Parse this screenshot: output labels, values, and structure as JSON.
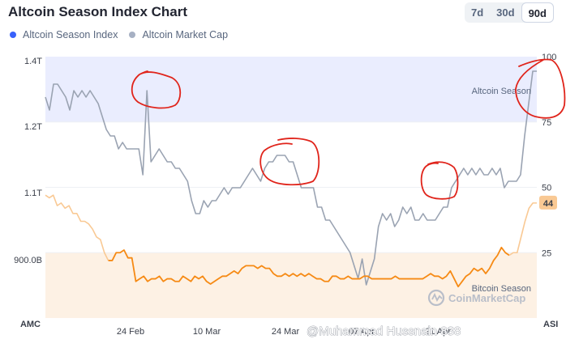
{
  "header": {
    "title": "Altcoin Season Index Chart",
    "range_tabs": [
      {
        "label": "7d",
        "active": false
      },
      {
        "label": "30d",
        "active": false
      },
      {
        "label": "90d",
        "active": true
      }
    ]
  },
  "legend": [
    {
      "label": "Altcoin Season Index",
      "color": "#3861fb"
    },
    {
      "label": "Altcoin Market Cap",
      "color": "#a6b0c3"
    }
  ],
  "watermark": {
    "brand": "CoinMarketCap",
    "user": "@Muhammad Hussnain 838"
  },
  "colors": {
    "market_cap_line": "#9aa3b2",
    "index_line": "#f68a14",
    "index_line_faded": "#f9c994",
    "altcoin_zone": "#eaedfe",
    "bitcoin_zone": "#fdf1e4",
    "annotation": "#e0241b"
  },
  "chart_data": {
    "type": "line",
    "x_ticks": [
      "24 Feb",
      "10 Mar",
      "24 Mar",
      "07 Apr",
      "21 Apr"
    ],
    "left_axis": {
      "ticks": [
        "1.4T",
        "1.2T",
        "1.1T",
        "900.0B"
      ],
      "extra_label": "AMC"
    },
    "right_axis": {
      "ticks": [
        "100",
        "75",
        "50",
        "25"
      ],
      "extra_label": "ASI",
      "ylim": [
        0,
        100
      ]
    },
    "zones": [
      {
        "label": "Altcoin Season",
        "from": 75,
        "to": 100
      },
      {
        "label": "Bitcoin Season",
        "from": 0,
        "to": 25
      }
    ],
    "current_index": "44",
    "series": [
      {
        "name": "Altcoin Market Cap",
        "axis": "left",
        "values": [
          1.24,
          1.22,
          1.26,
          1.26,
          1.25,
          1.24,
          1.22,
          1.25,
          1.24,
          1.25,
          1.24,
          1.25,
          1.24,
          1.23,
          1.21,
          1.19,
          1.18,
          1.18,
          1.16,
          1.17,
          1.16,
          1.16,
          1.16,
          1.16,
          1.12,
          1.25,
          1.14,
          1.15,
          1.16,
          1.15,
          1.14,
          1.14,
          1.13,
          1.13,
          1.12,
          1.11,
          1.08,
          1.06,
          1.06,
          1.08,
          1.07,
          1.08,
          1.08,
          1.09,
          1.1,
          1.09,
          1.1,
          1.1,
          1.1,
          1.11,
          1.12,
          1.13,
          1.12,
          1.11,
          1.13,
          1.14,
          1.14,
          1.15,
          1.15,
          1.15,
          1.14,
          1.14,
          1.12,
          1.1,
          1.1,
          1.1,
          1.1,
          1.07,
          1.07,
          1.05,
          1.05,
          1.04,
          1.03,
          1.02,
          1.01,
          1.0,
          0.98,
          0.96,
          0.99,
          0.95,
          0.97,
          0.99,
          1.04,
          1.06,
          1.05,
          1.06,
          1.04,
          1.05,
          1.07,
          1.06,
          1.07,
          1.05,
          1.05,
          1.06,
          1.05,
          1.05,
          1.05,
          1.06,
          1.07,
          1.07,
          1.1,
          1.11,
          1.12,
          1.13,
          1.12,
          1.13,
          1.12,
          1.13,
          1.12,
          1.12,
          1.13,
          1.12,
          1.13,
          1.1,
          1.11,
          1.11,
          1.11,
          1.12,
          1.18,
          1.23,
          1.28,
          1.28
        ]
      },
      {
        "name": "Altcoin Season Index",
        "axis": "right",
        "values": [
          47,
          46,
          47,
          43,
          44,
          42,
          43,
          40,
          40,
          37,
          37,
          36,
          34,
          31,
          30,
          25,
          22,
          22,
          25,
          25,
          26,
          23,
          23,
          14,
          15,
          16,
          14,
          15,
          15,
          16,
          14,
          15,
          15,
          14,
          14,
          16,
          15,
          14,
          16,
          15,
          16,
          14,
          13,
          14,
          15,
          16,
          16,
          17,
          18,
          17,
          19,
          20,
          20,
          20,
          19,
          20,
          19,
          19,
          17,
          16,
          16,
          17,
          16,
          17,
          16,
          17,
          16,
          17,
          16,
          15,
          15,
          14,
          14,
          16,
          16,
          15,
          15,
          16,
          15,
          15,
          15,
          16,
          16,
          15,
          15,
          15,
          15,
          15,
          15,
          16,
          15,
          15,
          15,
          15,
          15,
          15,
          15,
          16,
          17,
          16,
          16,
          15,
          16,
          18,
          15,
          12,
          14,
          16,
          17,
          19,
          18,
          19,
          17,
          19,
          22,
          24,
          27,
          25,
          24,
          25,
          25,
          31,
          37,
          42,
          44,
          44
        ]
      }
    ]
  }
}
